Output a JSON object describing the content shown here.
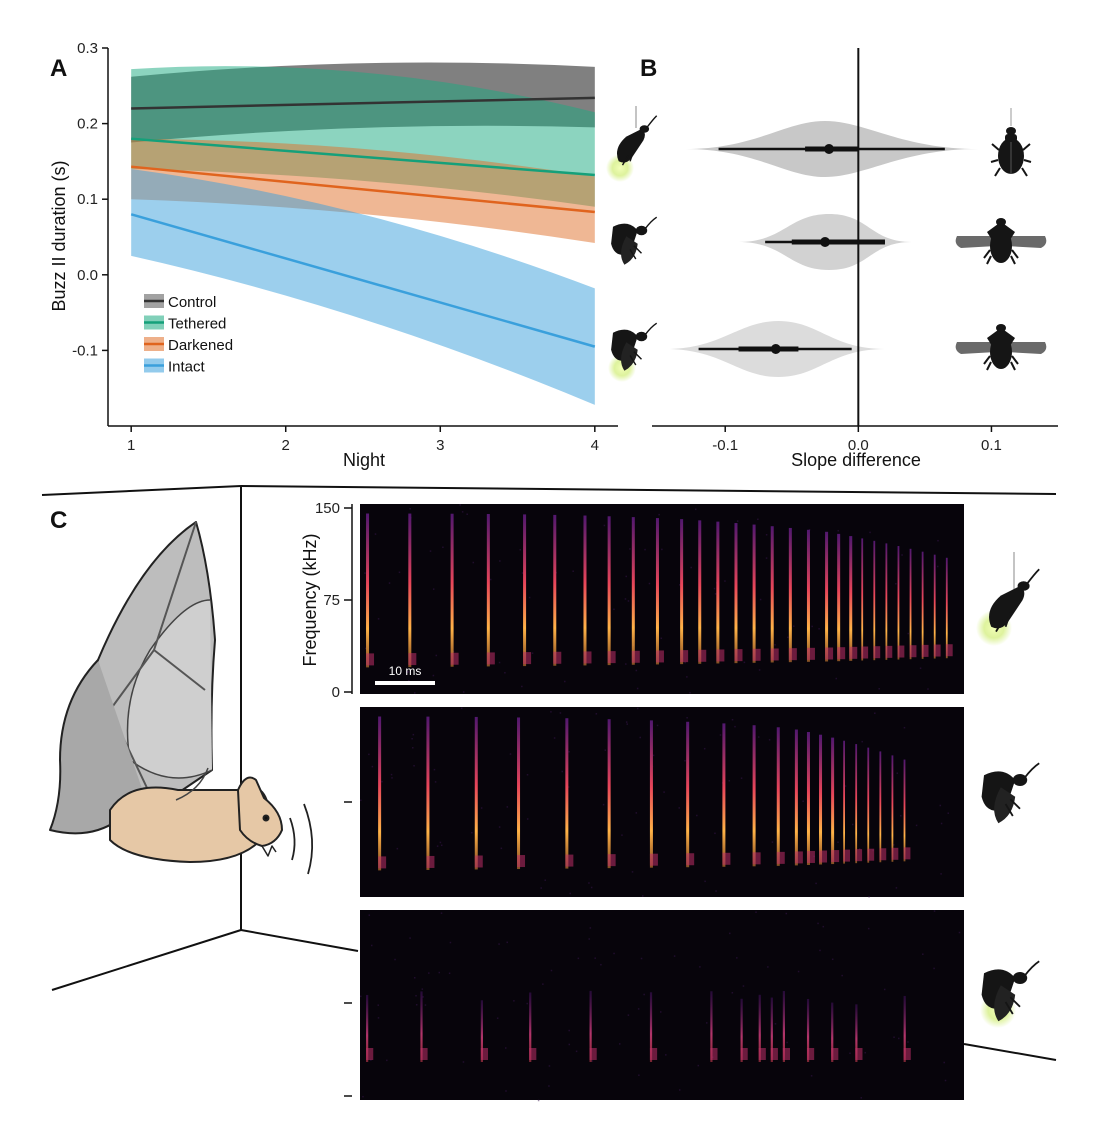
{
  "panels": {
    "a": "A",
    "b": "B",
    "c": "C"
  },
  "colors": {
    "control": "#555555",
    "tethered": "#1aaa80",
    "darkened": "#e0702a",
    "intact": "#3aa0dc",
    "glow": "#d8f08c",
    "spectrogram_bg": "#07040b"
  },
  "chart_data": [
    {
      "type": "line",
      "panel": "A",
      "xlabel": "Night",
      "ylabel": "Buzz II duration (s)",
      "xlim": [
        0.85,
        4.15
      ],
      "ylim": [
        -0.2,
        0.3
      ],
      "xticks": [
        "1",
        "2",
        "3",
        "4"
      ],
      "yticks": [
        "-0.1",
        "0.0",
        "0.1",
        "0.2",
        "0.3"
      ],
      "legend_position": "bottom-left",
      "series": [
        {
          "name": "Control",
          "color": "#333333",
          "fill": "#555555",
          "x": [
            1,
            4
          ],
          "y": [
            0.22,
            0.234
          ],
          "lower": [
            0.175,
            0.195
          ],
          "upper": [
            0.262,
            0.275
          ]
        },
        {
          "name": "Tethered",
          "color": "#15a07a",
          "fill": "#1aaa80",
          "x": [
            1,
            4
          ],
          "y": [
            0.18,
            0.132
          ],
          "lower": [
            0.14,
            0.09
          ],
          "upper": [
            0.272,
            0.215
          ]
        },
        {
          "name": "Darkened",
          "color": "#e0641e",
          "fill": "#e0702a",
          "x": [
            1,
            4
          ],
          "y": [
            0.143,
            0.083
          ],
          "lower": [
            0.1,
            0.042
          ],
          "upper": [
            0.18,
            0.13
          ]
        },
        {
          "name": "Intact",
          "color": "#3aa0dc",
          "fill": "#3aa0dc",
          "x": [
            1,
            4
          ],
          "y": [
            0.08,
            -0.095
          ],
          "lower": [
            0.025,
            -0.172
          ],
          "upper": [
            0.14,
            -0.018
          ]
        }
      ]
    },
    {
      "type": "scatter",
      "panel": "B",
      "xlabel": "Slope difference",
      "xlim": [
        -0.155,
        0.15
      ],
      "xticks": [
        "-0.1",
        "0.0",
        "0.1"
      ],
      "tick_values": [
        -0.1,
        0.0,
        0.1
      ],
      "reference_line": 0.0,
      "rows": [
        {
          "median": -0.022,
          "inner": [
            -0.04,
            0.0
          ],
          "outer": [
            -0.105,
            0.065
          ],
          "violin": [
            -0.13,
            0.09
          ],
          "violin_peak": -0.025,
          "violin_shade": "#c8c8c8"
        },
        {
          "median": -0.025,
          "inner": [
            -0.05,
            0.02
          ],
          "outer": [
            -0.07,
            0.02
          ],
          "violin": [
            -0.09,
            0.04
          ],
          "violin_peak": -0.022,
          "violin_shade": "#d2d2d2"
        },
        {
          "median": -0.062,
          "inner": [
            -0.09,
            -0.045
          ],
          "outer": [
            -0.12,
            -0.005
          ],
          "violin": [
            -0.145,
            0.02
          ],
          "violin_peak": -0.06,
          "violin_shade": "#dcdcdc"
        }
      ]
    },
    {
      "type": "heatmap",
      "panel": "C",
      "ylabel": "Frequency (kHz)",
      "yticks": [
        "0",
        "75",
        "150"
      ],
      "ylim": [
        0,
        150
      ],
      "scale_bar": "10 ms",
      "spectrograms": [
        {
          "condition": "Tethered",
          "pulses": [
            0.01,
            0.08,
            0.15,
            0.21,
            0.27,
            0.32,
            0.37,
            0.41,
            0.45,
            0.49,
            0.53,
            0.56,
            0.59,
            0.62,
            0.65,
            0.68,
            0.71,
            0.74,
            0.77,
            0.79,
            0.81,
            0.83,
            0.85,
            0.87,
            0.89,
            0.91,
            0.93,
            0.95,
            0.97
          ]
        },
        {
          "condition": "Darkened",
          "pulses": [
            0.03,
            0.11,
            0.19,
            0.26,
            0.34,
            0.41,
            0.48,
            0.54,
            0.6,
            0.65,
            0.69,
            0.72,
            0.74,
            0.76,
            0.78,
            0.8,
            0.82,
            0.84,
            0.86,
            0.88,
            0.9
          ]
        },
        {
          "condition": "Intact",
          "pulses": [
            0.01,
            0.1,
            0.2,
            0.28,
            0.38,
            0.48,
            0.58,
            0.63,
            0.66,
            0.68,
            0.7,
            0.74,
            0.78,
            0.82,
            0.9
          ]
        }
      ]
    }
  ]
}
